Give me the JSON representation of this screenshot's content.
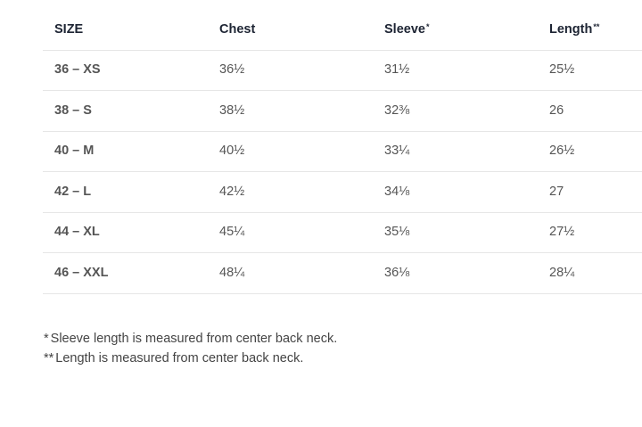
{
  "table": {
    "header": [
      {
        "text": "SIZE"
      },
      {
        "text": "Chest"
      },
      {
        "text": "Sleeve",
        "sup": "*"
      },
      {
        "text": "Length",
        "sup": "**"
      }
    ],
    "rows": [
      [
        "36 – XS",
        "36½",
        "31½",
        "25½"
      ],
      [
        "38 – S",
        "38½",
        "32⅜",
        "26"
      ],
      [
        "40 – M",
        "40½",
        "33¼",
        "26½"
      ],
      [
        "42 – L",
        "42½",
        "34⅛",
        "27"
      ],
      [
        "44 – XL",
        "45¼",
        "35⅛",
        "27½"
      ],
      [
        "46 – XXL",
        "48¼",
        "36⅛",
        "28¼"
      ]
    ]
  },
  "footnotes": [
    {
      "mark": "*",
      "text": "Sleeve length is measured from center back neck."
    },
    {
      "mark": "**",
      "text": "Length is measured from center back neck."
    }
  ]
}
